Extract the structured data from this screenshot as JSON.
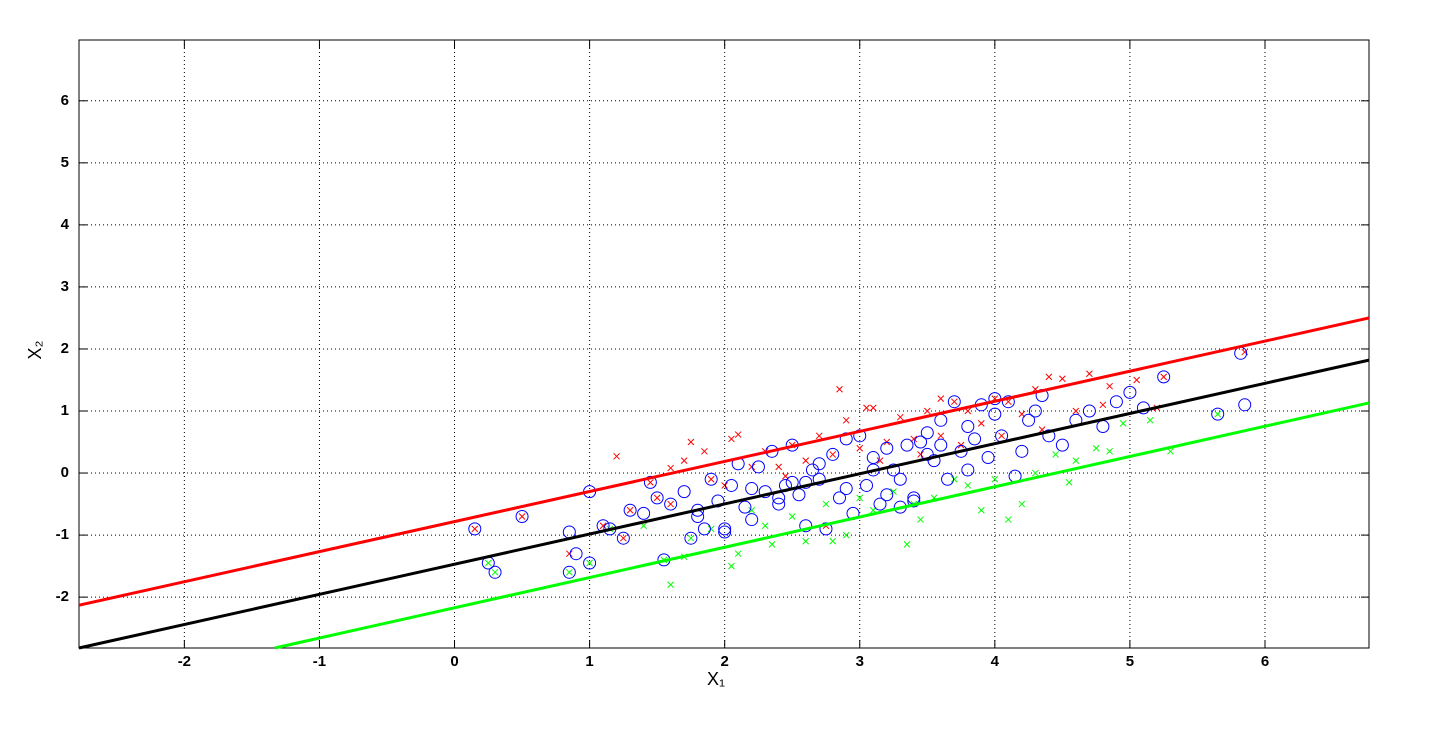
{
  "chart_data": {
    "type": "scatter",
    "xlabel": "X₁",
    "ylabel": "X₂",
    "xlim": [
      -2.78,
      6.77
    ],
    "ylim": [
      -2.82,
      6.98
    ],
    "xticks": [
      -2,
      -1,
      0,
      1,
      2,
      3,
      4,
      5,
      6
    ],
    "yticks": [
      -2,
      -1,
      0,
      1,
      2,
      3,
      4,
      5,
      6
    ],
    "grid": true,
    "series": [
      {
        "type": "line",
        "color": "#ff0000",
        "x": [
          -2.78,
          6.77
        ],
        "y": [
          -2.13,
          2.5
        ]
      },
      {
        "type": "line",
        "color": "#000000",
        "x": [
          -2.78,
          6.77
        ],
        "y": [
          -2.82,
          1.82
        ]
      },
      {
        "type": "line",
        "color": "#00ff00",
        "x": [
          -1.33,
          6.77
        ],
        "y": [
          -2.82,
          1.13
        ]
      },
      {
        "type": "scatter",
        "marker": "x",
        "color": "#ff0000",
        "x": [
          1.2,
          1.45,
          1.6,
          1.7,
          1.75,
          1.85,
          2.05,
          2.1,
          2.3,
          2.5,
          2.7,
          2.85,
          2.9,
          3.05,
          3.1,
          3.3,
          3.5,
          3.6,
          3.7,
          3.8,
          4.0,
          4.1,
          4.3,
          4.4,
          4.5,
          4.7,
          4.85,
          5.05,
          5.25,
          5.85,
          0.15,
          0.5,
          0.85,
          1.1,
          1.3,
          1.6,
          2.0,
          2.4,
          2.6,
          2.8,
          3.0,
          3.2,
          3.4,
          3.6,
          3.9,
          4.2,
          4.6,
          4.8,
          5.2,
          1.25,
          1.5,
          1.9,
          2.2,
          2.45,
          2.75,
          3.15,
          3.45,
          3.75,
          4.05,
          4.35
        ],
        "y": [
          0.27,
          -0.15,
          0.08,
          0.2,
          0.5,
          0.35,
          0.55,
          0.62,
          0.35,
          0.45,
          0.6,
          1.35,
          0.85,
          1.05,
          1.05,
          0.9,
          1.0,
          1.2,
          1.15,
          1.0,
          1.2,
          1.15,
          1.35,
          1.55,
          1.52,
          1.6,
          1.4,
          1.5,
          1.55,
          1.95,
          -0.9,
          -0.7,
          -1.3,
          -0.85,
          -0.6,
          -0.5,
          -0.2,
          0.1,
          0.2,
          0.3,
          0.4,
          0.5,
          0.55,
          0.6,
          0.8,
          0.95,
          1.0,
          1.1,
          1.05,
          -1.05,
          -0.4,
          -0.1,
          0.1,
          -0.05,
          -0.85,
          0.2,
          0.3,
          0.45,
          0.6,
          0.7
        ]
      },
      {
        "type": "scatter",
        "marker": "x",
        "color": "#00ff00",
        "x": [
          1.6,
          1.7,
          2.05,
          2.1,
          2.35,
          2.6,
          2.8,
          2.9,
          3.35,
          3.45,
          3.9,
          4.1,
          4.2,
          4.55,
          5.3,
          4.95,
          0.25,
          0.3,
          0.85,
          1.0,
          1.15,
          1.4,
          1.75,
          1.9,
          2.2,
          2.5,
          2.75,
          3.0,
          3.25,
          3.55,
          3.8,
          4.0,
          4.3,
          4.6,
          4.75,
          4.85,
          5.15,
          5.65,
          3.7,
          3.1,
          2.3,
          1.55,
          4.45,
          3.4
        ],
        "y": [
          -1.8,
          -1.35,
          -1.5,
          -1.3,
          -1.15,
          -1.1,
          -1.1,
          -1.0,
          -1.15,
          -0.75,
          -0.6,
          -0.75,
          -0.5,
          -0.15,
          0.35,
          0.8,
          -1.45,
          -1.6,
          -1.6,
          -1.45,
          -0.9,
          -0.85,
          -1.05,
          -0.9,
          -0.6,
          -0.7,
          -0.5,
          -0.4,
          -0.3,
          -0.4,
          -0.2,
          -0.1,
          0.0,
          0.2,
          0.4,
          0.35,
          0.85,
          0.95,
          -0.1,
          -0.6,
          -0.85,
          -1.4,
          0.3,
          -0.5
        ]
      },
      {
        "type": "scatter",
        "marker": "o",
        "color": "#0000ff",
        "x": [
          0.15,
          0.25,
          0.3,
          0.5,
          0.85,
          0.85,
          0.9,
          1.0,
          1.0,
          1.1,
          1.15,
          1.25,
          1.3,
          1.4,
          1.45,
          1.5,
          1.55,
          1.6,
          1.7,
          1.75,
          1.8,
          1.85,
          1.9,
          1.95,
          2.0,
          2.05,
          2.1,
          2.15,
          2.2,
          2.25,
          2.3,
          2.35,
          2.4,
          2.45,
          2.5,
          2.55,
          2.6,
          2.65,
          2.7,
          2.75,
          2.8,
          2.85,
          2.9,
          2.95,
          3.0,
          3.05,
          3.1,
          3.15,
          3.2,
          3.25,
          3.3,
          3.35,
          3.4,
          3.45,
          3.5,
          3.55,
          3.6,
          3.65,
          3.7,
          3.75,
          3.8,
          3.85,
          3.9,
          3.95,
          4.0,
          4.05,
          4.1,
          4.15,
          4.2,
          4.25,
          4.3,
          4.35,
          4.4,
          4.5,
          4.6,
          4.7,
          4.8,
          4.9,
          5.0,
          5.1,
          5.25,
          5.65,
          5.82,
          5.85,
          2.5,
          2.7,
          2.9,
          3.1,
          3.3,
          3.5,
          2.2,
          2.4,
          2.6,
          3.6,
          3.8,
          4.0,
          1.8,
          2.0,
          3.2,
          3.4
        ],
        "y": [
          -0.9,
          -1.45,
          -1.6,
          -0.7,
          -0.95,
          -1.6,
          -1.3,
          -0.3,
          -1.45,
          -0.85,
          -0.9,
          -1.05,
          -0.6,
          -0.65,
          -0.15,
          -0.4,
          -1.4,
          -0.5,
          -0.3,
          -1.05,
          -0.7,
          -0.9,
          -0.1,
          -0.45,
          -0.95,
          -0.2,
          0.15,
          -0.55,
          -0.75,
          0.1,
          -0.3,
          0.35,
          -0.5,
          -0.2,
          0.45,
          -0.35,
          -0.85,
          0.05,
          -0.1,
          -0.9,
          0.3,
          -0.4,
          0.55,
          -0.65,
          0.6,
          -0.2,
          0.25,
          -0.5,
          0.4,
          0.05,
          -0.1,
          0.45,
          -0.4,
          0.5,
          0.65,
          0.2,
          0.85,
          -0.1,
          1.15,
          0.35,
          0.05,
          0.55,
          1.1,
          0.25,
          1.2,
          0.6,
          1.15,
          -0.05,
          0.35,
          0.85,
          1.0,
          1.25,
          0.6,
          0.45,
          0.85,
          1.0,
          0.75,
          1.15,
          1.3,
          1.05,
          1.55,
          0.95,
          1.93,
          1.1,
          -0.15,
          0.15,
          -0.25,
          0.05,
          -0.55,
          0.3,
          -0.25,
          -0.4,
          -0.15,
          0.45,
          0.75,
          0.95,
          -0.6,
          -0.9,
          -0.35,
          -0.45
        ]
      }
    ]
  }
}
